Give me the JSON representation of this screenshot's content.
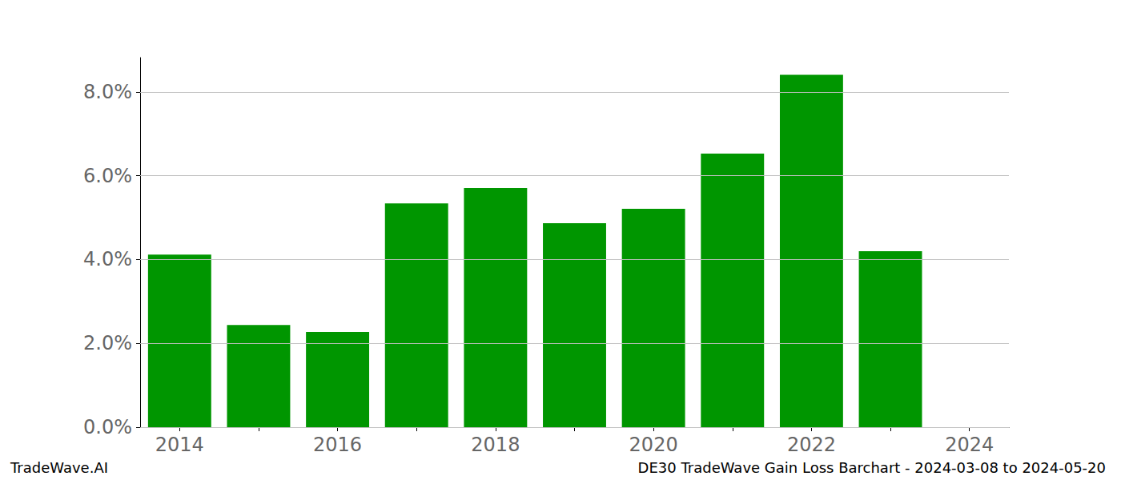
{
  "chart_data": {
    "type": "bar",
    "title": "DE30 TradeWave Gain Loss Barchart - 2024-03-08 to 2024-05-20",
    "annotations": [
      "TradeWave.AI"
    ],
    "categories": [
      "2014",
      null,
      "2016",
      null,
      "2018",
      null,
      "2020",
      null,
      "2022",
      null,
      "2024"
    ],
    "values": [
      4.12,
      2.44,
      2.27,
      5.34,
      5.71,
      4.87,
      5.21,
      6.53,
      8.41,
      4.2,
      null
    ],
    "color": "#009600",
    "ylim": [
      0,
      8.82
    ],
    "yticks": [
      {
        "value": 0,
        "label": "0.0%"
      },
      {
        "value": 2,
        "label": "2.0%"
      },
      {
        "value": 4,
        "label": "4.0%"
      },
      {
        "value": 6,
        "label": "6.0%"
      },
      {
        "value": 8,
        "label": "8.0%"
      }
    ],
    "grid": true
  }
}
